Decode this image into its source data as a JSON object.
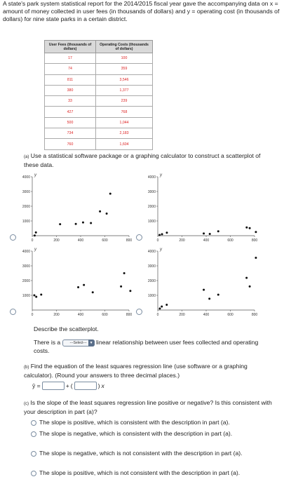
{
  "intro": "A state's park system statistical report for the 2014/2015 fiscal year gave the accompanying data on x = amount of money collected in user fees (in thousands of dollars) and y = operating cost (in thousands of dollars) for nine state parks in a certain district.",
  "table": {
    "headers": [
      "User Fees (thousands of dollars)",
      "Operating Costs (thousands of dollars)"
    ],
    "rows": [
      [
        "17",
        "100"
      ],
      [
        "74",
        "359"
      ],
      [
        "811",
        "3,546"
      ],
      [
        "380",
        "1,377"
      ],
      [
        "33",
        "239"
      ],
      [
        "427",
        "768"
      ],
      [
        "500",
        "1,044"
      ],
      [
        "734",
        "2,183"
      ],
      [
        "760",
        "1,604"
      ]
    ]
  },
  "part_a": {
    "label": "(a)",
    "text": "Use a statistical software package or a graphing calculator to construct a scatterplot of these data.",
    "y_axis_letter": "y",
    "x_ticks": [
      "0",
      "200",
      "400",
      "600",
      "800"
    ],
    "y_ticks": [
      "1000",
      "2000",
      "3000",
      "4000"
    ]
  },
  "chart_data": [
    {
      "type": "scatter",
      "option": 1,
      "x": [
        20,
        30,
        230,
        360,
        420,
        485,
        560,
        615,
        645
      ],
      "y": [
        10,
        220,
        780,
        800,
        900,
        860,
        1650,
        1500,
        2850
      ],
      "xlim": [
        0,
        800
      ],
      "ylim": [
        0,
        4000
      ],
      "grid": false
    },
    {
      "type": "scatter",
      "option": 2,
      "x": [
        15,
        35,
        75,
        380,
        430,
        500,
        735,
        760,
        811
      ],
      "y": [
        50,
        100,
        200,
        150,
        120,
        300,
        560,
        510,
        250
      ],
      "xlim": [
        0,
        800
      ],
      "ylim": [
        0,
        4000
      ],
      "grid": false
    },
    {
      "type": "scatter",
      "option": 3,
      "x": [
        17,
        33,
        74,
        380,
        427,
        500,
        734,
        760,
        811
      ],
      "y": [
        1000,
        900,
        1050,
        1550,
        1700,
        1200,
        1600,
        2500,
        1300
      ],
      "xlim": [
        0,
        800
      ],
      "ylim": [
        0,
        4000
      ],
      "grid": false
    },
    {
      "type": "scatter",
      "option": 4,
      "x": [
        17,
        33,
        74,
        380,
        427,
        500,
        734,
        760,
        811
      ],
      "y": [
        100,
        239,
        359,
        1377,
        768,
        1044,
        2183,
        1604,
        3546
      ],
      "xlim": [
        0,
        800
      ],
      "ylim": [
        0,
        4000
      ],
      "grid": false
    }
  ],
  "describe": "Describe the scatterplot.",
  "there_is_a": "There is a",
  "select_placeholder": "---Select---",
  "relationship_text": "linear relationship between user fees collected and operating costs.",
  "part_b": {
    "label": "(b)",
    "text": "Find the equation of the least squares regression line (use software or a graphing calculator). (Round your answers to three decimal places.)",
    "yhat": "ŷ =",
    "plus": "+",
    "x_var": "x"
  },
  "part_c": {
    "label": "(c)",
    "text": "Is the slope of the least squares regression line positive or negative? Is this consistent with your description in part (a)?",
    "options": [
      "The slope is positive, which is consistent with the description in part (a).",
      "The slope is negative, which is consistent with the description in part (a).",
      "The slope is negative, which is not consistent with the description in part (a).",
      "The slope is positive, which is not consistent with the description in part (a)."
    ]
  },
  "colors": {
    "data_text": "#dd2222",
    "border": "#7a8ca0",
    "header_bg": "#d9d9d9"
  }
}
